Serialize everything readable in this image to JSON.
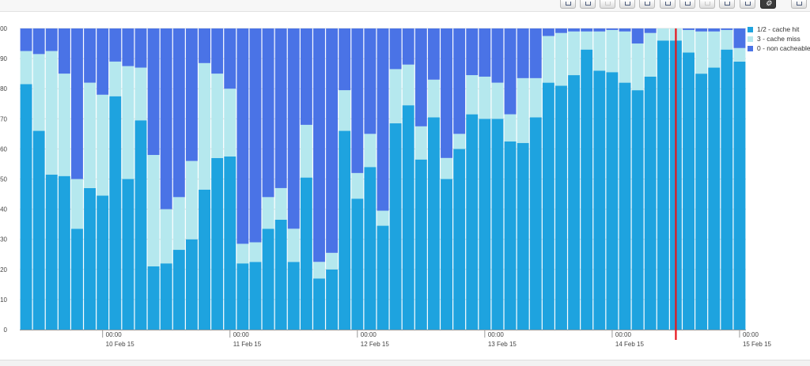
{
  "toolbar": {
    "buttons": [
      {
        "name": "table-view-button-icon",
        "enabled": true
      },
      {
        "name": "list-view-button-icon",
        "enabled": true
      },
      {
        "name": "grid-view-button-icon",
        "enabled": false
      },
      {
        "name": "export-button-icon",
        "enabled": true
      },
      {
        "name": "image-button-icon",
        "enabled": true
      },
      {
        "name": "globe-button-icon",
        "enabled": true
      },
      {
        "name": "bar-chart-button-icon",
        "enabled": true
      },
      {
        "name": "pie-chart-button-icon",
        "enabled": false
      },
      {
        "name": "stacked-chart-button-icon",
        "enabled": true
      },
      {
        "name": "list-button-icon",
        "enabled": true
      },
      {
        "name": "gear-icon",
        "enabled": true
      },
      {
        "name": "collapse-button-icon",
        "enabled": true
      }
    ]
  },
  "chart_data": {
    "type": "bar",
    "stacked": true,
    "ylim": [
      0,
      100
    ],
    "yticks": [
      "0",
      "10",
      "20",
      "30",
      "40",
      "50",
      "60",
      "70",
      "80",
      "90",
      "100"
    ],
    "xticks": [
      {
        "index": 6.5,
        "time": "00:00",
        "date": "10 Feb 15"
      },
      {
        "index": 16.5,
        "time": "00:00",
        "date": "11 Feb 15"
      },
      {
        "index": 26.5,
        "time": "00:00",
        "date": "12 Feb 15"
      },
      {
        "index": 36.5,
        "time": "00:00",
        "date": "13 Feb 15"
      },
      {
        "index": 46.5,
        "time": "00:00",
        "date": "14 Feb 15"
      },
      {
        "index": 56.5,
        "time": "00:00",
        "date": "15 Feb 15"
      }
    ],
    "extra_minor_tick_index": 66.5,
    "marker_line_index": 51.5,
    "marker_color": "#e8141a",
    "grid": true,
    "legend_position": "right",
    "series": [
      {
        "name": "1/2 - cache hit",
        "color": "#1ea3df",
        "values": [
          81.5,
          66,
          51.5,
          51,
          33.5,
          47,
          44.5,
          77.5,
          50,
          69.5,
          21,
          22,
          26.5,
          30,
          46.5,
          57,
          57.5,
          22,
          22.5,
          33.5,
          36.5,
          22.5,
          50.5,
          17,
          20,
          66,
          43.5,
          54,
          34.5,
          68.5,
          74.5,
          56.5,
          70.5,
          50,
          60,
          71.5,
          70,
          70,
          62.5,
          62,
          70.5,
          82,
          81,
          84.5,
          93,
          86,
          85.5,
          82,
          79.5,
          84,
          96,
          96,
          92,
          85,
          87,
          93,
          89
        ]
      },
      {
        "name": "3 - cache miss",
        "color": "#b5e8ee",
        "values": [
          11,
          25.5,
          41,
          34,
          16.5,
          35,
          33.5,
          11.5,
          37.5,
          17.5,
          37,
          18,
          17.5,
          26,
          42,
          28,
          22.5,
          6.5,
          6.5,
          10.5,
          10.5,
          11,
          17.5,
          5.5,
          5.5,
          13.5,
          8.5,
          11,
          5,
          18,
          13.5,
          11,
          12.5,
          7,
          5,
          13,
          14,
          12,
          9,
          21.5,
          13,
          15.5,
          17.5,
          14.5,
          6,
          13,
          14,
          17,
          15.5,
          14.5,
          4,
          4,
          7.5,
          14,
          12,
          6.5,
          4.5
        ]
      },
      {
        "name": "0 - non cacheable",
        "color": "#4a73e6",
        "values": [
          7.5,
          8.5,
          7.5,
          15,
          50,
          18,
          22,
          11,
          12.5,
          13,
          42,
          60,
          56,
          44,
          11.5,
          15,
          20,
          71.5,
          71,
          56,
          53,
          66.5,
          32,
          77.5,
          74.5,
          20.5,
          48,
          35,
          60.5,
          13.5,
          12,
          32.5,
          17,
          43,
          35,
          15.5,
          16,
          18,
          28.5,
          16.5,
          16.5,
          2.5,
          1.5,
          1,
          1,
          1,
          0.5,
          1,
          5,
          1.5,
          0,
          0,
          0.5,
          1,
          1,
          0.5,
          6.5
        ]
      }
    ]
  }
}
